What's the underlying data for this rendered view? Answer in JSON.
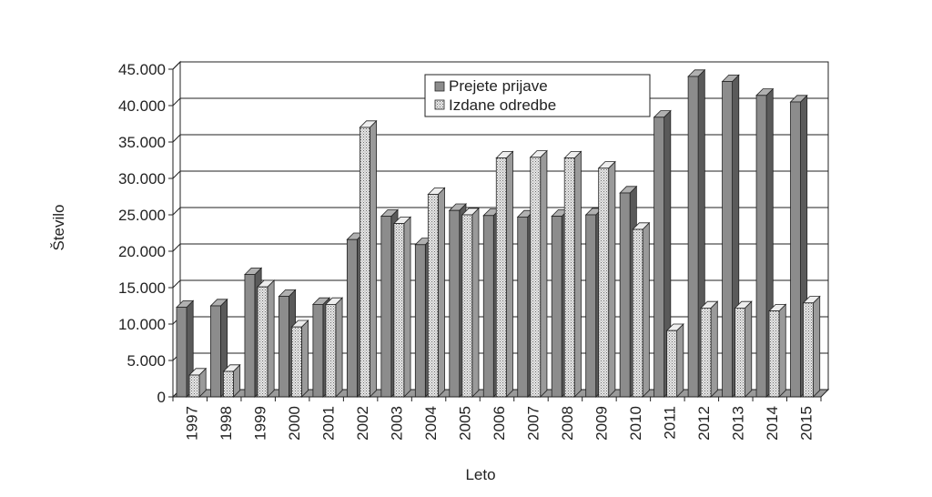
{
  "chart_data": {
    "type": "bar",
    "title": "",
    "xlabel": "Leto",
    "ylabel": "Število",
    "ylim": [
      0,
      45000
    ],
    "ytick_labels": [
      "0",
      "5.000",
      "10.000",
      "15.000",
      "20.000",
      "25.000",
      "30.000",
      "35.000",
      "40.000",
      "45.000"
    ],
    "grid": true,
    "legend_position": "top-right",
    "categories": [
      "1997",
      "1998",
      "1999",
      "2000",
      "2001",
      "2002",
      "2003",
      "2004",
      "2005",
      "2006",
      "2007",
      "2008",
      "2009",
      "2010",
      "2011",
      "2012",
      "2013",
      "2014",
      "2015"
    ],
    "series": [
      {
        "name": "Prejete prijave",
        "color": "#8c8c8c",
        "values": [
          12300,
          12500,
          16800,
          13800,
          12700,
          21600,
          24800,
          20900,
          25600,
          24900,
          24700,
          24800,
          25000,
          28000,
          38400,
          44000,
          43300,
          41400,
          40500
        ]
      },
      {
        "name": "Izdane odredbe",
        "color": "#d6d6d6",
        "values": [
          3000,
          3500,
          15100,
          9600,
          12700,
          37000,
          23800,
          27800,
          25000,
          32800,
          32900,
          32800,
          31400,
          23000,
          9100,
          12200,
          12200,
          11800,
          12900
        ]
      }
    ]
  }
}
